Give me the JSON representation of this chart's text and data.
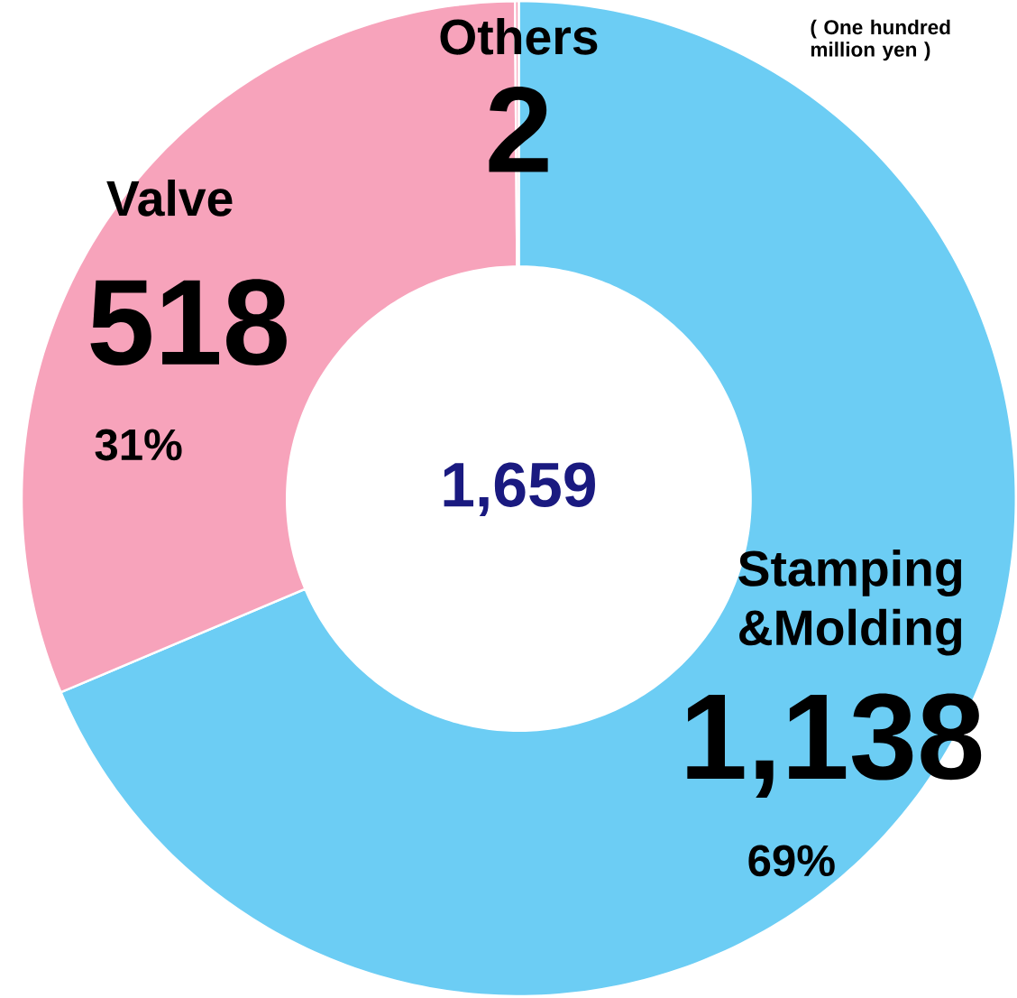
{
  "chart_data": {
    "type": "donut",
    "categories": [
      "Stamping &Molding",
      "Valve",
      "Others"
    ],
    "values": [
      1138,
      518,
      2
    ],
    "colors": [
      "#6ccdf4",
      "#f7a3bb",
      "#f7a3bb"
    ],
    "value_labels": [
      "1,138",
      "518",
      "2"
    ],
    "annotations": [
      "69%",
      "31%",
      "1,659",
      "( One hundred million yen )"
    ]
  }
}
